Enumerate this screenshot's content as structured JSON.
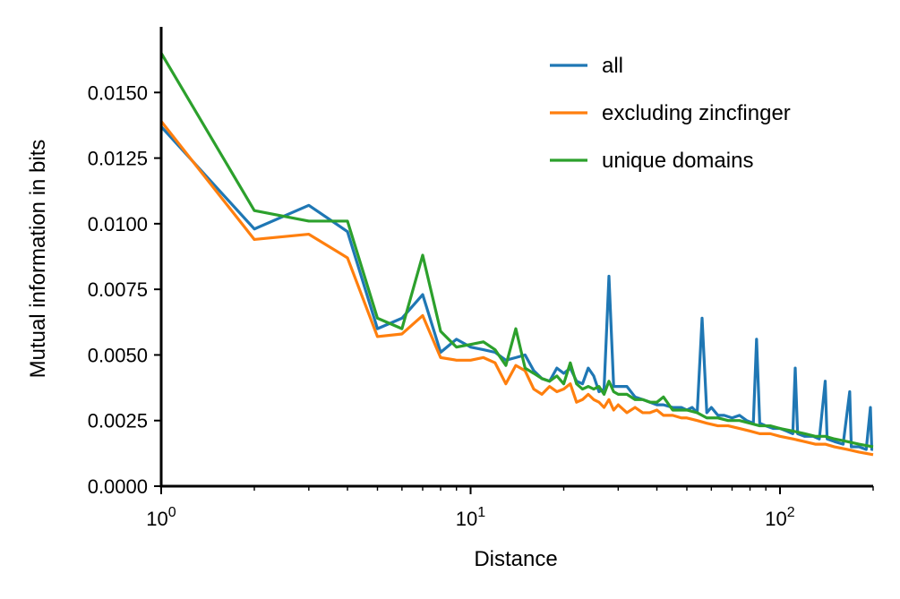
{
  "chart_data": {
    "type": "line",
    "xlabel": "Distance",
    "ylabel": "Mutual information in bits",
    "xscale": "log",
    "xlim": [
      1,
      200
    ],
    "ylim": [
      0,
      0.0175
    ],
    "grid": false,
    "legend_position": "top-right",
    "x_ticks": [
      {
        "value": 1,
        "base": "10",
        "exp": "0"
      },
      {
        "value": 10,
        "base": "10",
        "exp": "1"
      },
      {
        "value": 100,
        "base": "10",
        "exp": "2"
      }
    ],
    "y_ticks": [
      "0.0000",
      "0.0025",
      "0.0050",
      "0.0075",
      "0.0100",
      "0.0125",
      "0.0150"
    ],
    "series": [
      {
        "name": "all",
        "color": "#1f77b4",
        "points": [
          [
            1,
            0.0137
          ],
          [
            2,
            0.0098
          ],
          [
            3,
            0.0107
          ],
          [
            4,
            0.0097
          ],
          [
            5,
            0.006
          ],
          [
            6,
            0.0064
          ],
          [
            7,
            0.0073
          ],
          [
            8,
            0.0051
          ],
          [
            9,
            0.0056
          ],
          [
            10,
            0.0053
          ],
          [
            11,
            0.0052
          ],
          [
            12,
            0.0051
          ],
          [
            13,
            0.0048
          ],
          [
            14,
            0.0049
          ],
          [
            15,
            0.005
          ],
          [
            16,
            0.0044
          ],
          [
            17,
            0.0041
          ],
          [
            18,
            0.004
          ],
          [
            19,
            0.0045
          ],
          [
            20,
            0.0043
          ],
          [
            21,
            0.0045
          ],
          [
            22,
            0.004
          ],
          [
            23,
            0.0039
          ],
          [
            24,
            0.0045
          ],
          [
            25,
            0.0042
          ],
          [
            26,
            0.0036
          ],
          [
            27,
            0.0037
          ],
          [
            28,
            0.008
          ],
          [
            29,
            0.0038
          ],
          [
            30,
            0.0038
          ],
          [
            32,
            0.0038
          ],
          [
            34,
            0.0034
          ],
          [
            36,
            0.0033
          ],
          [
            38,
            0.0032
          ],
          [
            40,
            0.0031
          ],
          [
            42,
            0.0031
          ],
          [
            45,
            0.003
          ],
          [
            48,
            0.003
          ],
          [
            50,
            0.0029
          ],
          [
            52,
            0.003
          ],
          [
            54,
            0.0028
          ],
          [
            56,
            0.0064
          ],
          [
            58,
            0.0028
          ],
          [
            60,
            0.003
          ],
          [
            63,
            0.0027
          ],
          [
            66,
            0.0027
          ],
          [
            70,
            0.0026
          ],
          [
            74,
            0.0027
          ],
          [
            78,
            0.0025
          ],
          [
            82,
            0.0024
          ],
          [
            84,
            0.0056
          ],
          [
            86,
            0.0024
          ],
          [
            90,
            0.0023
          ],
          [
            95,
            0.0022
          ],
          [
            100,
            0.0022
          ],
          [
            105,
            0.0021
          ],
          [
            110,
            0.002
          ],
          [
            112,
            0.0045
          ],
          [
            114,
            0.002
          ],
          [
            120,
            0.0019
          ],
          [
            128,
            0.0019
          ],
          [
            134,
            0.0018
          ],
          [
            140,
            0.004
          ],
          [
            142,
            0.0018
          ],
          [
            150,
            0.0017
          ],
          [
            160,
            0.0016
          ],
          [
            168,
            0.0036
          ],
          [
            170,
            0.0015
          ],
          [
            180,
            0.0015
          ],
          [
            190,
            0.0014
          ],
          [
            196,
            0.003
          ],
          [
            198,
            0.0014
          ],
          [
            200,
            0.0014
          ]
        ]
      },
      {
        "name": "excluding zincfinger",
        "color": "#ff7f0e",
        "points": [
          [
            1,
            0.0139
          ],
          [
            2,
            0.0094
          ],
          [
            3,
            0.0096
          ],
          [
            4,
            0.0087
          ],
          [
            5,
            0.0057
          ],
          [
            6,
            0.0058
          ],
          [
            7,
            0.0065
          ],
          [
            8,
            0.0049
          ],
          [
            9,
            0.0048
          ],
          [
            10,
            0.0048
          ],
          [
            11,
            0.0049
          ],
          [
            12,
            0.0047
          ],
          [
            13,
            0.0039
          ],
          [
            14,
            0.0046
          ],
          [
            15,
            0.0044
          ],
          [
            16,
            0.0037
          ],
          [
            17,
            0.0035
          ],
          [
            18,
            0.0038
          ],
          [
            19,
            0.0036
          ],
          [
            20,
            0.0037
          ],
          [
            21,
            0.0039
          ],
          [
            22,
            0.0032
          ],
          [
            23,
            0.0033
          ],
          [
            24,
            0.0035
          ],
          [
            25,
            0.0033
          ],
          [
            26,
            0.0032
          ],
          [
            27,
            0.003
          ],
          [
            28,
            0.0033
          ],
          [
            29,
            0.0029
          ],
          [
            30,
            0.0031
          ],
          [
            32,
            0.0028
          ],
          [
            34,
            0.003
          ],
          [
            36,
            0.0028
          ],
          [
            38,
            0.0028
          ],
          [
            40,
            0.0029
          ],
          [
            42,
            0.0027
          ],
          [
            45,
            0.0027
          ],
          [
            48,
            0.0026
          ],
          [
            50,
            0.0026
          ],
          [
            54,
            0.0025
          ],
          [
            58,
            0.0024
          ],
          [
            63,
            0.0023
          ],
          [
            68,
            0.0023
          ],
          [
            74,
            0.0022
          ],
          [
            80,
            0.0021
          ],
          [
            86,
            0.002
          ],
          [
            93,
            0.002
          ],
          [
            100,
            0.0019
          ],
          [
            110,
            0.0018
          ],
          [
            120,
            0.0017
          ],
          [
            130,
            0.0016
          ],
          [
            140,
            0.0016
          ],
          [
            150,
            0.0015
          ],
          [
            165,
            0.0014
          ],
          [
            180,
            0.0013
          ],
          [
            200,
            0.0012
          ]
        ]
      },
      {
        "name": "unique domains",
        "color": "#2ca02c",
        "points": [
          [
            1,
            0.0165
          ],
          [
            2,
            0.0105
          ],
          [
            3,
            0.0101
          ],
          [
            4,
            0.0101
          ],
          [
            5,
            0.0064
          ],
          [
            6,
            0.006
          ],
          [
            7,
            0.0088
          ],
          [
            8,
            0.0059
          ],
          [
            9,
            0.0053
          ],
          [
            10,
            0.0054
          ],
          [
            11,
            0.0055
          ],
          [
            12,
            0.0052
          ],
          [
            13,
            0.0046
          ],
          [
            14,
            0.006
          ],
          [
            15,
            0.0045
          ],
          [
            16,
            0.0043
          ],
          [
            17,
            0.0041
          ],
          [
            18,
            0.004
          ],
          [
            19,
            0.0042
          ],
          [
            20,
            0.0039
          ],
          [
            21,
            0.0047
          ],
          [
            22,
            0.0039
          ],
          [
            23,
            0.0037
          ],
          [
            24,
            0.0038
          ],
          [
            25,
            0.0037
          ],
          [
            26,
            0.0038
          ],
          [
            27,
            0.0035
          ],
          [
            28,
            0.004
          ],
          [
            29,
            0.0036
          ],
          [
            30,
            0.0035
          ],
          [
            32,
            0.0035
          ],
          [
            34,
            0.0033
          ],
          [
            36,
            0.0033
          ],
          [
            38,
            0.0032
          ],
          [
            40,
            0.0032
          ],
          [
            42,
            0.0034
          ],
          [
            45,
            0.0029
          ],
          [
            48,
            0.0029
          ],
          [
            50,
            0.0029
          ],
          [
            54,
            0.0028
          ],
          [
            58,
            0.0026
          ],
          [
            63,
            0.0026
          ],
          [
            68,
            0.0025
          ],
          [
            74,
            0.0025
          ],
          [
            80,
            0.0024
          ],
          [
            86,
            0.0023
          ],
          [
            93,
            0.0023
          ],
          [
            100,
            0.0022
          ],
          [
            110,
            0.0021
          ],
          [
            120,
            0.002
          ],
          [
            130,
            0.0019
          ],
          [
            140,
            0.0019
          ],
          [
            150,
            0.0018
          ],
          [
            165,
            0.0017
          ],
          [
            180,
            0.0016
          ],
          [
            200,
            0.0015
          ]
        ]
      }
    ]
  }
}
